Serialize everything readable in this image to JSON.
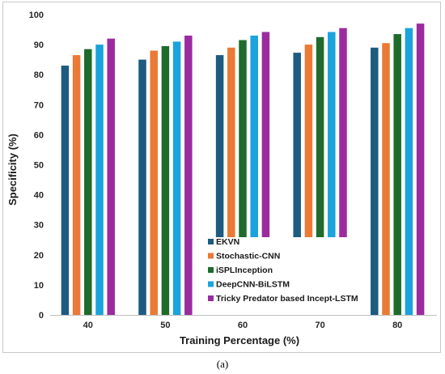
{
  "caption": "(a)",
  "chart_data": {
    "type": "bar",
    "xlabel": "Training Percentage (%)",
    "ylabel": "Specificity (%)",
    "ylim": [
      0,
      100
    ],
    "yticks": [
      0,
      10,
      20,
      30,
      40,
      50,
      60,
      70,
      80,
      90,
      100
    ],
    "categories": [
      "40",
      "50",
      "60",
      "70",
      "80"
    ],
    "grid": false,
    "legend_position": "bottom-center",
    "series": [
      {
        "name": "EKVN",
        "color": "#1d5b80",
        "values": [
          83,
          85,
          86.5,
          87.3,
          89
        ]
      },
      {
        "name": "Stochastic-CNN",
        "color": "#ea7a35",
        "values": [
          86.5,
          88,
          89,
          90,
          90.5
        ]
      },
      {
        "name": "iSPLInception",
        "color": "#1e6b2c",
        "values": [
          88.5,
          89.5,
          91.5,
          92.5,
          93.5
        ]
      },
      {
        "name": "DeepCNN-BiLSTM",
        "color": "#1aa3dc",
        "values": [
          90,
          91,
          93,
          94.2,
          95.5
        ]
      },
      {
        "name": "Tricky Predator based Incept-LSTM",
        "color": "#9b2b9f",
        "values": [
          92,
          93,
          94.2,
          95.5,
          97
        ]
      }
    ]
  }
}
